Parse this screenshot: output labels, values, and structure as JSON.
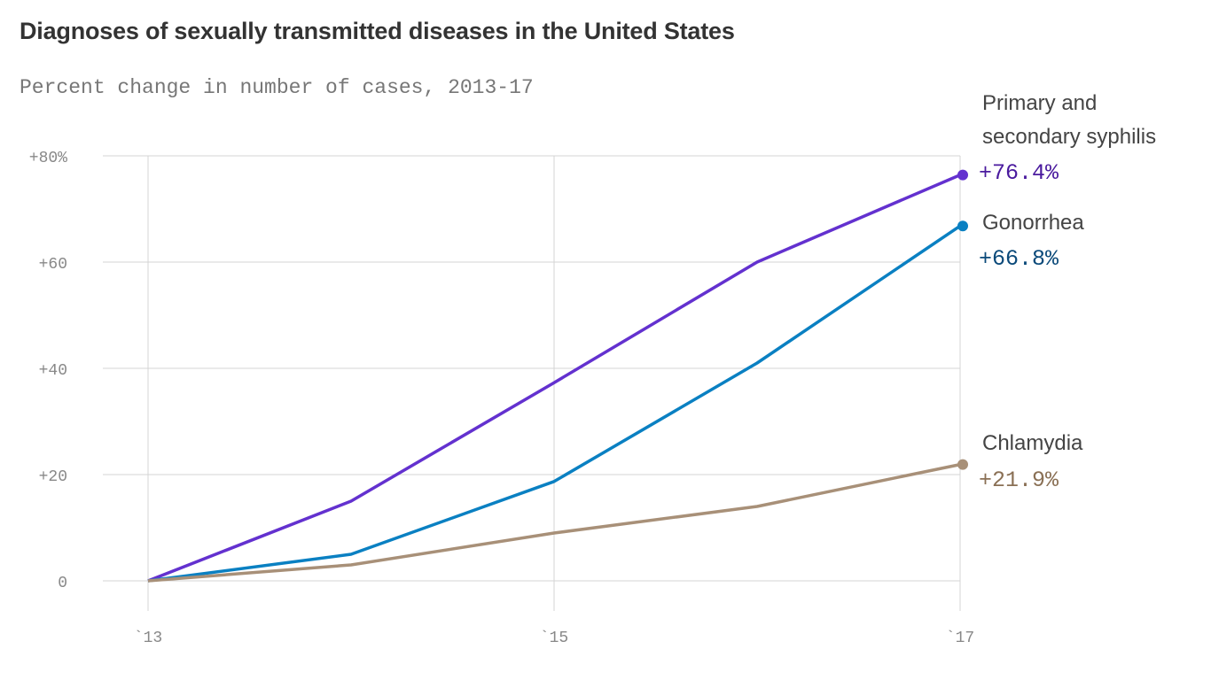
{
  "chart_data": {
    "type": "line",
    "title": "Diagnoses of sexually transmitted diseases in the United States",
    "subtitle": "Percent change in number of cases, 2013-17",
    "x": [
      2013,
      2014,
      2015,
      2016,
      2017
    ],
    "x_ticks": [
      {
        "value": 2013,
        "label": "`13"
      },
      {
        "value": 2015,
        "label": "`15"
      },
      {
        "value": 2017,
        "label": "`17"
      }
    ],
    "y_ticks": [
      {
        "value": 0,
        "label": "0"
      },
      {
        "value": 20,
        "label": "+20"
      },
      {
        "value": 40,
        "label": "+40"
      },
      {
        "value": 60,
        "label": "+60"
      },
      {
        "value": 80,
        "label": "+80%"
      }
    ],
    "ylim": [
      0,
      80
    ],
    "xlim": [
      2013,
      2017
    ],
    "grid": true,
    "legend": "direct labels at line ends (right)",
    "series": [
      {
        "name": "Primary and secondary syphilis",
        "name_lines": [
          "Primary and",
          "secondary syphilis"
        ],
        "values": [
          0,
          15,
          37.3,
          60,
          76.4
        ],
        "end_label": "+76.4%",
        "color": "#6331cf",
        "label_color": "#4a1a9e"
      },
      {
        "name": "Gonorrhea",
        "name_lines": [
          "Gonorrhea"
        ],
        "values": [
          0,
          5,
          18.7,
          41,
          66.8
        ],
        "end_label": "+66.8%",
        "color": "#0a80c2",
        "label_color": "#0b4a7a"
      },
      {
        "name": "Chlamydia",
        "name_lines": [
          "Chlamydia"
        ],
        "values": [
          0,
          3,
          9,
          14,
          21.9
        ],
        "end_label": "+21.9%",
        "color": "#a89078",
        "label_color": "#8a7055"
      }
    ]
  }
}
